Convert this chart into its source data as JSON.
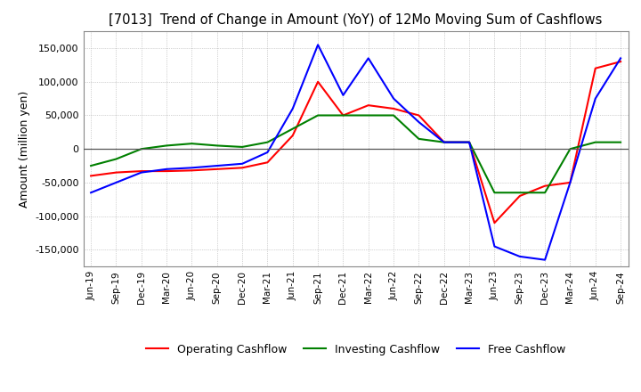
{
  "title": "[7013]  Trend of Change in Amount (YoY) of 12Mo Moving Sum of Cashflows",
  "ylabel": "Amount (million yen)",
  "ylim": [
    -175000,
    175000
  ],
  "yticks": [
    -150000,
    -100000,
    -50000,
    0,
    50000,
    100000,
    150000
  ],
  "background_color": "#ffffff",
  "grid_color": "#aaaaaa",
  "legend_labels": [
    "Operating Cashflow",
    "Investing Cashflow",
    "Free Cashflow"
  ],
  "line_colors": [
    "#ff0000",
    "#008000",
    "#0000ff"
  ],
  "x_labels": [
    "Jun-19",
    "Sep-19",
    "Dec-19",
    "Mar-20",
    "Jun-20",
    "Sep-20",
    "Dec-20",
    "Mar-21",
    "Jun-21",
    "Sep-21",
    "Dec-21",
    "Mar-22",
    "Jun-22",
    "Sep-22",
    "Dec-22",
    "Mar-23",
    "Jun-23",
    "Sep-23",
    "Dec-23",
    "Mar-24",
    "Jun-24",
    "Sep-24"
  ],
  "operating": [
    -40000,
    -35000,
    -33000,
    -33000,
    -32000,
    -30000,
    -28000,
    -20000,
    20000,
    100000,
    50000,
    65000,
    60000,
    50000,
    10000,
    10000,
    -110000,
    -70000,
    -55000,
    -50000,
    120000,
    130000
  ],
  "investing": [
    -25000,
    -15000,
    0,
    5000,
    8000,
    5000,
    3000,
    10000,
    30000,
    50000,
    50000,
    50000,
    50000,
    15000,
    10000,
    10000,
    -65000,
    -65000,
    -65000,
    0,
    10000,
    10000
  ],
  "free": [
    -65000,
    -50000,
    -35000,
    -30000,
    -28000,
    -25000,
    -22000,
    -5000,
    60000,
    155000,
    80000,
    135000,
    75000,
    40000,
    10000,
    10000,
    -145000,
    -160000,
    -165000,
    -50000,
    75000,
    135000
  ]
}
